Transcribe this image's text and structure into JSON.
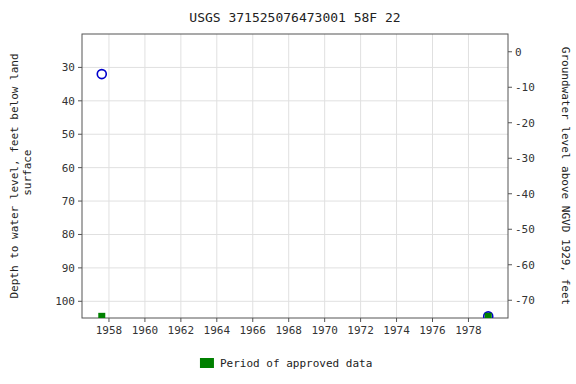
{
  "chart_data": {
    "type": "scatter",
    "title": "USGS 371525076473001 58F 22",
    "y_label": "Depth to water level, feet below land\n surface",
    "y2_label": "Groundwater level above NGVD 1929, feet",
    "xlim": [
      1956.5,
      1980.2
    ],
    "xticks": [
      1958,
      1960,
      1962,
      1964,
      1966,
      1968,
      1970,
      1972,
      1974,
      1976,
      1978
    ],
    "ylim": [
      105,
      20
    ],
    "yticks": [
      30,
      40,
      50,
      60,
      70,
      80,
      90,
      100
    ],
    "y2lim": [
      -75,
      5
    ],
    "y2ticks": [
      0,
      -10,
      -20,
      -30,
      -40,
      -50,
      -60,
      -70
    ],
    "grid": true,
    "legend": "bottom",
    "series": [
      {
        "color": "#0000cc",
        "marker": "circle-open",
        "x": [
          1957.6,
          1979.1
        ],
        "values": [
          32,
          104.5
        ]
      },
      {
        "name": "Period of approved data",
        "color": "#008000",
        "marker": "square",
        "x": [
          1957.6,
          1979.1
        ],
        "values": [
          104.5,
          104.5
        ]
      }
    ]
  }
}
